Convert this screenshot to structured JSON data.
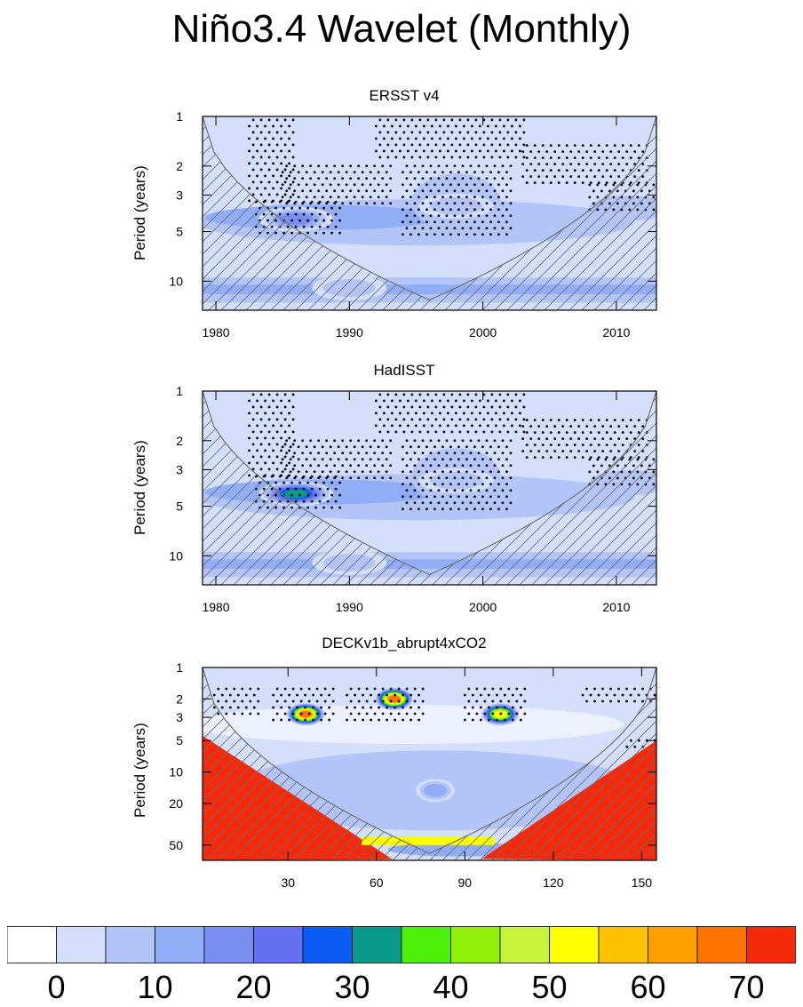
{
  "title": "Niño3.4 Wavelet (Monthly)",
  "chart_data": [
    {
      "type": "heatmap",
      "title": "ERSST v4",
      "ylabel": "Period (years)",
      "xlabel": "",
      "x_ticks": [
        "1980",
        "1990",
        "2000",
        "2010"
      ],
      "x_tick_values": [
        1980,
        1990,
        2000,
        2010
      ],
      "xlim": [
        1979,
        2013
      ],
      "y_ticks": [
        "1",
        "2",
        "3",
        "5",
        "10"
      ],
      "y_tick_values": [
        1,
        2,
        3,
        5,
        10
      ],
      "ylim": [
        1,
        15
      ],
      "y_scale": "log (inverted)",
      "cone_of_influence": true,
      "significance_stippling": true,
      "features": [
        {
          "x": 1986,
          "period": 4.2,
          "value": 22
        },
        {
          "x": 1998,
          "period": 3.5,
          "value": 12
        },
        {
          "x": 1990,
          "period": 11,
          "value": 12
        }
      ]
    },
    {
      "type": "heatmap",
      "title": "HadISST",
      "ylabel": "Period (years)",
      "xlabel": "",
      "x_ticks": [
        "1980",
        "1990",
        "2000",
        "2010"
      ],
      "x_tick_values": [
        1980,
        1990,
        2000,
        2010
      ],
      "xlim": [
        1979,
        2013
      ],
      "y_ticks": [
        "1",
        "2",
        "3",
        "5",
        "10"
      ],
      "y_tick_values": [
        1,
        2,
        3,
        5,
        10
      ],
      "ylim": [
        1,
        15
      ],
      "y_scale": "log (inverted)",
      "cone_of_influence": true,
      "significance_stippling": true,
      "features": [
        {
          "x": 1986,
          "period": 4.2,
          "value": 35
        },
        {
          "x": 1998,
          "period": 3.5,
          "value": 12
        },
        {
          "x": 1990,
          "period": 11,
          "value": 12
        }
      ]
    },
    {
      "type": "heatmap",
      "title": "DECKv1b_abrupt4xCO2",
      "ylabel": "Period (years)",
      "xlabel": "",
      "x_ticks": [
        "30",
        "60",
        "90",
        "120",
        "150"
      ],
      "x_tick_values": [
        30,
        60,
        90,
        120,
        150
      ],
      "xlim": [
        1,
        155
      ],
      "y_ticks": [
        "1",
        "2",
        "3",
        "5",
        "10",
        "20",
        "50"
      ],
      "y_tick_values": [
        1,
        2,
        3,
        5,
        10,
        20,
        50
      ],
      "ylim": [
        1,
        70
      ],
      "y_scale": "log (inverted)",
      "cone_of_influence": true,
      "significance_stippling": true,
      "features": [
        {
          "x": 36,
          "period": 2.8,
          "value": 70
        },
        {
          "x": 66,
          "period": 2,
          "value": 70
        },
        {
          "x": 102,
          "period": 2.8,
          "value": 55
        },
        {
          "x": 80,
          "period": 15,
          "value": 15
        }
      ]
    }
  ],
  "colorbar": {
    "labels": [
      "0",
      "10",
      "20",
      "30",
      "40",
      "50",
      "60",
      "70"
    ],
    "colors": [
      "#ffffff",
      "#d4e0fb",
      "#b3c5f8",
      "#91adf7",
      "#7a8ff0",
      "#6470f0",
      "#0a5cf5",
      "#0a9a8c",
      "#4ef00a",
      "#90f00a",
      "#c6f53c",
      "#ffff00",
      "#fdc300",
      "#fda000",
      "#fd7300",
      "#f52a0a"
    ]
  }
}
